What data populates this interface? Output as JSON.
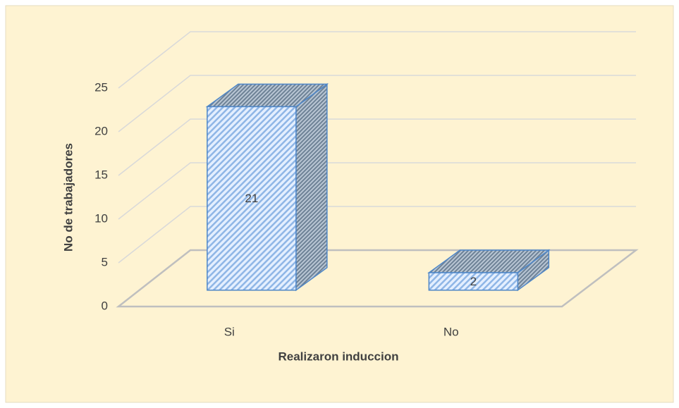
{
  "chart_data": {
    "type": "bar3d",
    "categories": [
      "Si",
      "No"
    ],
    "values": [
      21,
      2
    ],
    "xlabel": "Realizaron induccion",
    "ylabel": "No de trabajadores",
    "color": "#4f87c8",
    "ylim": [
      0,
      25
    ],
    "yticks": [
      0,
      5,
      10,
      15,
      20,
      25
    ],
    "grid": true
  }
}
